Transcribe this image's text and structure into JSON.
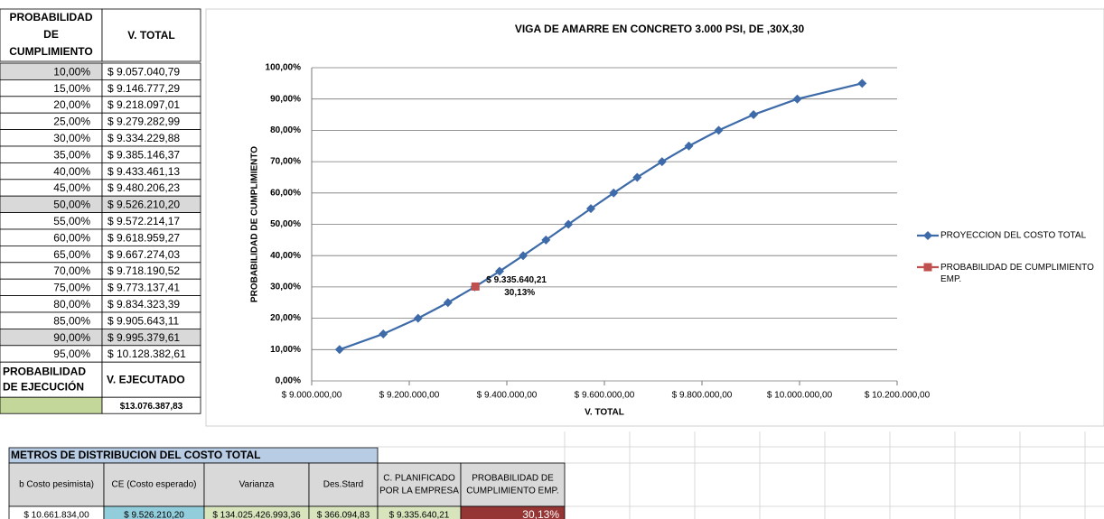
{
  "table": {
    "header_a": [
      "PROBABILIDAD",
      "DE",
      "CUMPLIMIENTO"
    ],
    "header_b": "V. TOTAL",
    "rows": [
      [
        "10,00%",
        "$ 9.057.040,79"
      ],
      [
        "15,00%",
        "$ 9.146.777,29"
      ],
      [
        "20,00%",
        "$ 9.218.097,01"
      ],
      [
        "25,00%",
        "$ 9.279.282,99"
      ],
      [
        "30,00%",
        "$ 9.334.229,88"
      ],
      [
        "35,00%",
        "$ 9.385.146,37"
      ],
      [
        "40,00%",
        "$ 9.433.461,13"
      ],
      [
        "45,00%",
        "$ 9.480.206,23"
      ],
      [
        "50,00%",
        "$ 9.526.210,20"
      ],
      [
        "55,00%",
        "$ 9.572.214,17"
      ],
      [
        "60,00%",
        "$ 9.618.959,27"
      ],
      [
        "65,00%",
        "$ 9.667.274,03"
      ],
      [
        "70,00%",
        "$ 9.718.190,52"
      ],
      [
        "75,00%",
        "$ 9.773.137,41"
      ],
      [
        "80,00%",
        "$ 9.834.323,39"
      ],
      [
        "85,00%",
        "$ 9.905.643,11"
      ],
      [
        "90,00%",
        "$ 9.995.379,61"
      ],
      [
        "95,00%",
        "$ 10.128.382,61"
      ]
    ],
    "footer_a": [
      "PROBABILIDAD",
      "DE EJECUCIÓN"
    ],
    "footer_b": "V. EJECUTADO",
    "footer_value": "$13.076.387,83"
  },
  "bottom": {
    "title": "METROS DE DISTRIBUCION DEL COSTO TOTAL",
    "headers": [
      [
        "b Costo pesimista)"
      ],
      [
        "CE (Costo esperado)"
      ],
      [
        "Varianza"
      ],
      [
        "Des.Stard"
      ],
      [
        "C. PLANIFICADO",
        "POR LA EMPRESA"
      ],
      [
        "PROBABILIDAD DE",
        "CUMPLIMIENTO EMP."
      ]
    ],
    "values": [
      "$ 10.661.834,00",
      "$ 9.526.210,20",
      "$ 134.025.426.993,36",
      "$ 366.094,83",
      "$ 9.335.640,21",
      "30,13%"
    ]
  },
  "chart_data": {
    "type": "line",
    "title": "VIGA DE AMARRE EN CONCRETO 3.000 PSI, DE ,30X,30",
    "x_label": "V. TOTAL",
    "y_label": "PROBABILIDAD  DE CUMPLIMIENTO",
    "xlim": [
      9000000,
      10200000
    ],
    "ylim": [
      0,
      100
    ],
    "xticks": [
      {
        "value": 9000000,
        "label": "$ 9.000.000,00"
      },
      {
        "value": 9200000,
        "label": "$ 9.200.000,00"
      },
      {
        "value": 9400000,
        "label": "$ 9.400.000,00"
      },
      {
        "value": 9600000,
        "label": "$ 9.600.000,00"
      },
      {
        "value": 9800000,
        "label": "$ 9.800.000,00"
      },
      {
        "value": 10000000,
        "label": "$ 10.000.000,00"
      },
      {
        "value": 10200000,
        "label": "$ 10.200.000,00"
      }
    ],
    "yticks": [
      {
        "value": 0,
        "label": "0,00%"
      },
      {
        "value": 10,
        "label": "10,00%"
      },
      {
        "value": 20,
        "label": "20,00%"
      },
      {
        "value": 30,
        "label": "30,00%"
      },
      {
        "value": 40,
        "label": "40,00%"
      },
      {
        "value": 50,
        "label": "50,00%"
      },
      {
        "value": 60,
        "label": "60,00%"
      },
      {
        "value": 70,
        "label": "70,00%"
      },
      {
        "value": 80,
        "label": "80,00%"
      },
      {
        "value": 90,
        "label": "90,00%"
      },
      {
        "value": 100,
        "label": "100,00%"
      }
    ],
    "grid": true,
    "legend": "right",
    "series": [
      {
        "name": "PROYECCION DEL COSTO TOTAL",
        "color": "#3d6aa8",
        "marker": "diamond",
        "x": [
          9057040.79,
          9146777.29,
          9218097.01,
          9279282.99,
          9334229.88,
          9385146.37,
          9433461.13,
          9480206.23,
          9526210.2,
          9572214.17,
          9618959.27,
          9667274.03,
          9718190.52,
          9773137.41,
          9834323.39,
          9905643.11,
          9995379.61,
          10128382.61
        ],
        "values": [
          10,
          15,
          20,
          25,
          30,
          35,
          40,
          45,
          50,
          55,
          60,
          65,
          70,
          75,
          80,
          85,
          90,
          95
        ]
      },
      {
        "name": "PROBABILIDAD DE CUMPLIMIENTO EMP.",
        "color": "#c0504d",
        "marker": "square",
        "x": [
          9335640.21
        ],
        "x_labels": [
          "$ 9.335.640,21"
        ],
        "values": [
          30.13
        ],
        "value_labels": [
          "30,13%"
        ]
      }
    ]
  }
}
